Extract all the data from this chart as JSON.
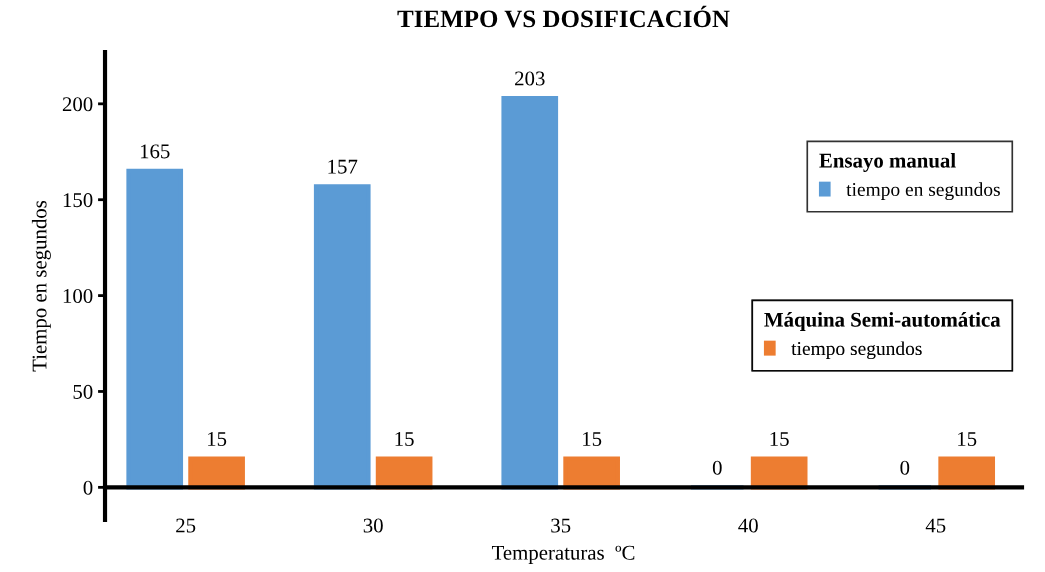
{
  "chart_data": {
    "type": "bar",
    "title": "TIEMPO VS DOSIFICACIÓN",
    "xlabel": "Temperaturas  ºC",
    "ylabel": "Tiempo en segundos",
    "categories": [
      "25",
      "30",
      "35",
      "40",
      "45"
    ],
    "series": [
      {
        "name": "tiempo en segundos",
        "color": "#5b9bd5",
        "values": [
          165,
          157,
          203,
          0,
          0
        ]
      },
      {
        "name": "tiempo segundos",
        "color": "#ed7d31",
        "values": [
          15,
          15,
          15,
          15,
          15
        ]
      }
    ],
    "legend_title": [
      "Ensayo manual",
      "Máquina Semi-automática"
    ],
    "ylim": [
      -17,
      227
    ],
    "yticks": [
      0,
      50,
      100,
      150,
      200
    ],
    "data_labels": true,
    "grid": false,
    "legend": "right"
  }
}
